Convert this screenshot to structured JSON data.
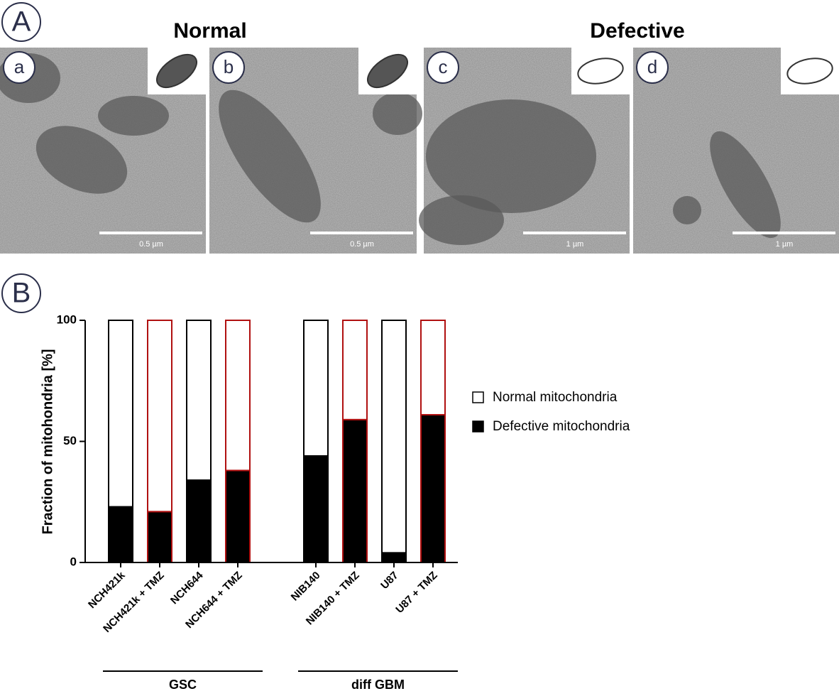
{
  "panel_a": {
    "label": "A",
    "headers": [
      "Normal",
      "Defective"
    ],
    "images": [
      {
        "letter": "a",
        "scale": "0.5 µm"
      },
      {
        "letter": "b",
        "scale": "0.5 µm"
      },
      {
        "letter": "c",
        "scale": "1 µm"
      },
      {
        "letter": "d",
        "scale": "1 µm"
      }
    ]
  },
  "panel_b": {
    "label": "B"
  },
  "chart_data": {
    "type": "stacked_bar",
    "y_label": "Fraction of mitohondria  [%]",
    "categories": [
      "NCH421k",
      "NCH421k + TMZ",
      "NCH644",
      "NCH644 + TMZ",
      "NIB140",
      "NIB140 + TMZ",
      "U87",
      "U87 + TMZ"
    ],
    "series": [
      {
        "name": "Normal mitochondria",
        "color": "#ffffff",
        "values": [
          77,
          79,
          66,
          62,
          56,
          41,
          96,
          39
        ]
      },
      {
        "name": "Defective mitochondria",
        "color": "#000000",
        "values": [
          23,
          21,
          34,
          38,
          44,
          59,
          4,
          61
        ]
      }
    ],
    "edge_colors": [
      "#000000",
      "#b01010",
      "#000000",
      "#b01010",
      "#000000",
      "#b01010",
      "#000000",
      "#b01010"
    ],
    "groups": [
      {
        "label": "GSC",
        "size": 4
      },
      {
        "label": "diff GBM",
        "size": 4
      }
    ],
    "ylim": [
      0,
      100
    ],
    "yticks": [
      0,
      50,
      100
    ]
  }
}
